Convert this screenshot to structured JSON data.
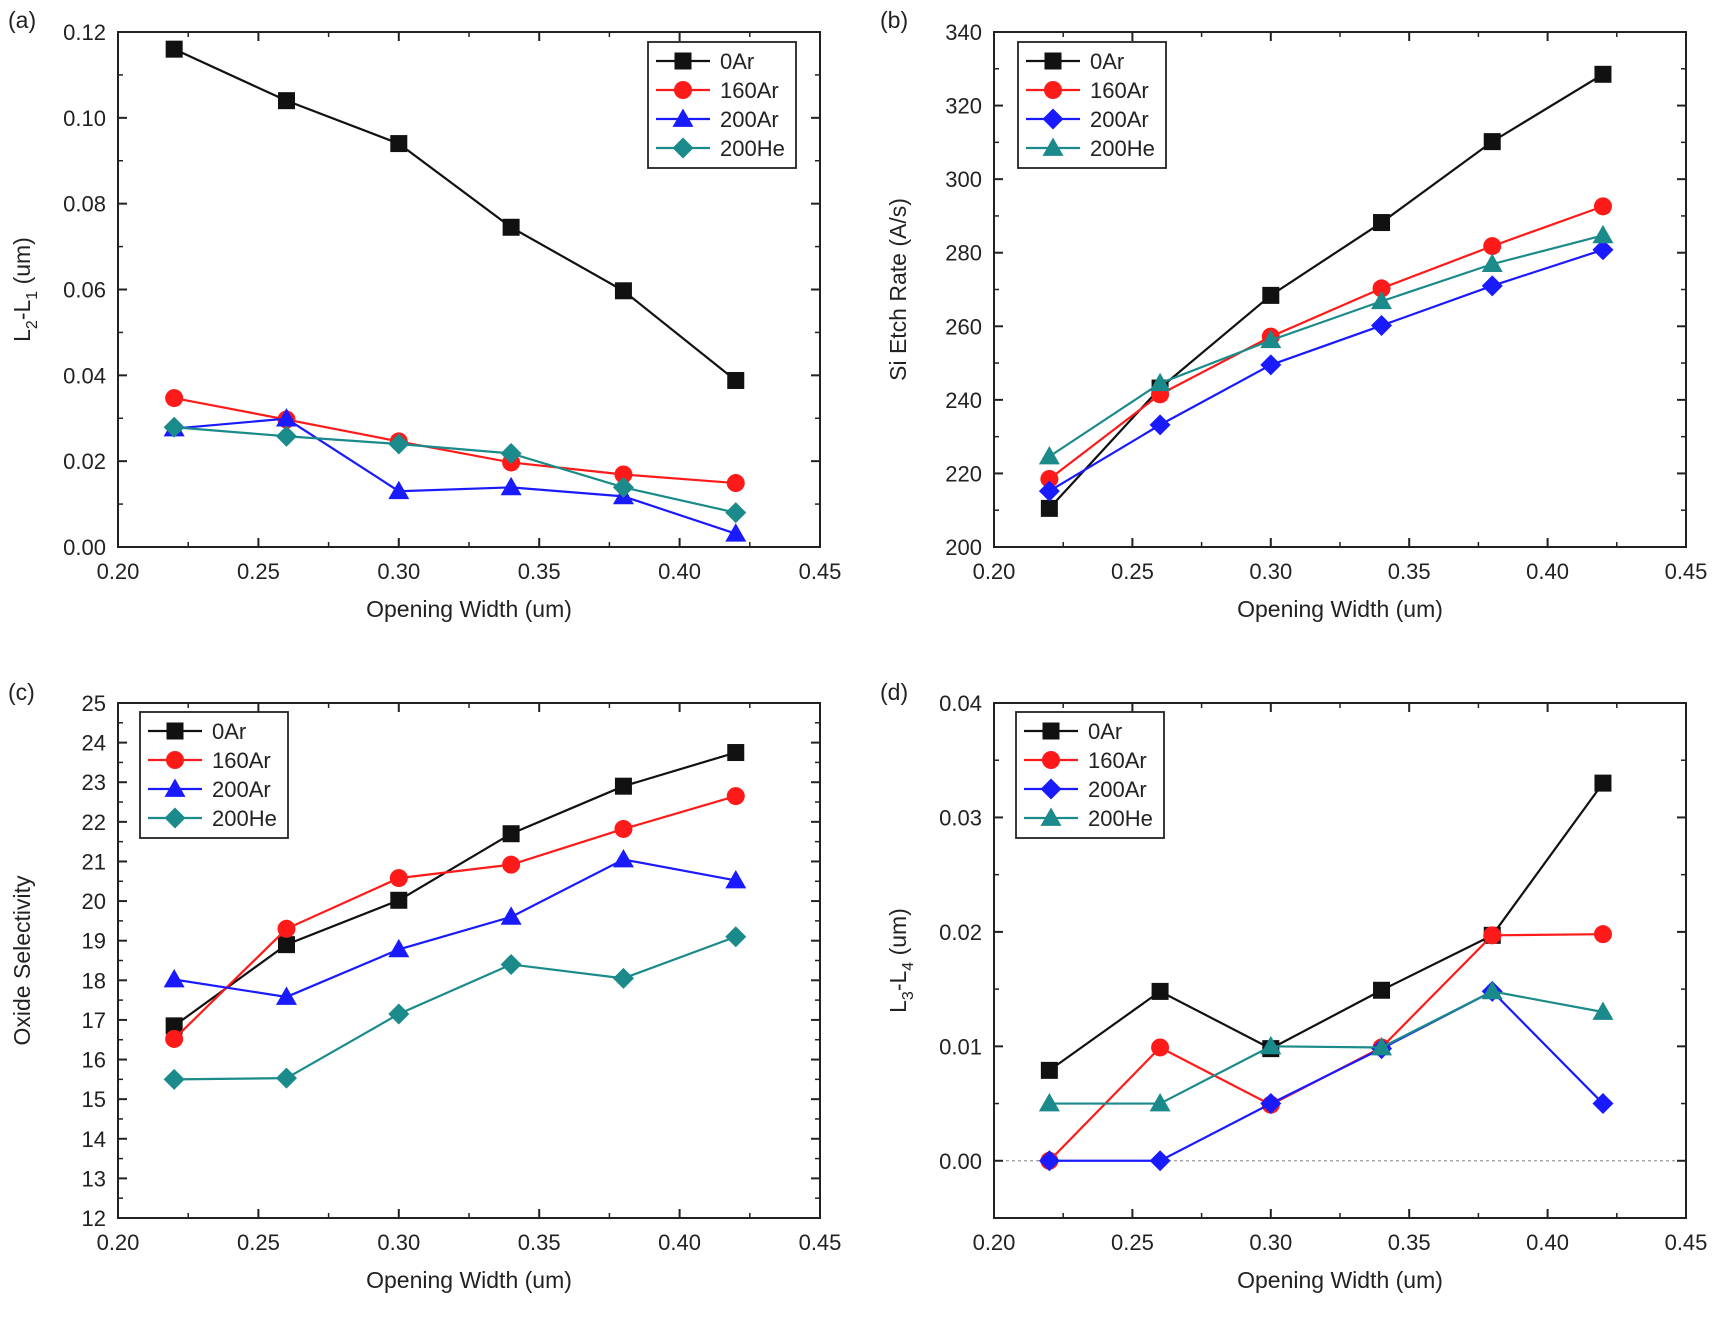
{
  "figure": {
    "colors": {
      "0Ar": "#111111",
      "160Ar": "#ff1a1a",
      "200Ar": "#1a1aff",
      "200He": "#1a8a8a",
      "axis": "#222222",
      "zeroline": "#999999"
    }
  },
  "chart_data": [
    {
      "panel": "(a)",
      "type": "line",
      "xlabel": "Opening Width (um)",
      "ylabel": "L2-L1 (um)",
      "ylabel_parts": {
        "a": "L",
        "a_sub": "2",
        "mid": "-L",
        "b_sub": "1",
        "tail": " (um)"
      },
      "xlim": [
        0.2,
        0.45
      ],
      "ylim": [
        0.0,
        0.12
      ],
      "xticks": [
        "0.20",
        "0.25",
        "0.30",
        "0.35",
        "0.40",
        "0.45"
      ],
      "yticks": [
        "0.00",
        "0.02",
        "0.04",
        "0.06",
        "0.08",
        "0.10",
        "0.12"
      ],
      "x": [
        0.22,
        0.26,
        0.3,
        0.34,
        0.38,
        0.42
      ],
      "series": [
        {
          "name": "0Ar",
          "marker": "square",
          "values": [
            0.116,
            0.104,
            0.094,
            0.0745,
            0.0597,
            0.0388
          ]
        },
        {
          "name": "160Ar",
          "marker": "circle",
          "values": [
            0.0347,
            0.0297,
            0.0246,
            0.0197,
            0.0169,
            0.0149
          ]
        },
        {
          "name": "200Ar",
          "marker": "triangle",
          "values": [
            0.0276,
            0.0299,
            0.013,
            0.0139,
            0.0118,
            0.0031
          ]
        },
        {
          "name": "200He",
          "marker": "diamond",
          "values": [
            0.0279,
            0.0258,
            0.024,
            0.0218,
            0.0139,
            0.008
          ]
        }
      ],
      "legend": "top-right"
    },
    {
      "panel": "(b)",
      "type": "line",
      "xlabel": "Opening Width (um)",
      "ylabel": "Si Etch Rate (A/s)",
      "xlim": [
        0.2,
        0.45
      ],
      "ylim": [
        200,
        340
      ],
      "xticks": [
        "0.20",
        "0.25",
        "0.30",
        "0.35",
        "0.40",
        "0.45"
      ],
      "yticks": [
        "200",
        "220",
        "240",
        "260",
        "280",
        "300",
        "320",
        "340"
      ],
      "x": [
        0.22,
        0.26,
        0.3,
        0.34,
        0.38,
        0.42
      ],
      "series": [
        {
          "name": "0Ar",
          "marker": "square",
          "values": [
            210.5,
            243.2,
            268.4,
            288.2,
            310.2,
            328.5
          ]
        },
        {
          "name": "160Ar",
          "marker": "circle",
          "values": [
            218.5,
            241.5,
            257.2,
            270.3,
            281.8,
            292.6
          ]
        },
        {
          "name": "200Ar",
          "marker": "diamond",
          "values": [
            215.2,
            233.2,
            249.5,
            260.2,
            271.0,
            280.8
          ]
        },
        {
          "name": "200He",
          "marker": "triangle",
          "values": [
            224.6,
            244.5,
            256.2,
            266.8,
            276.9,
            284.7
          ]
        }
      ],
      "legend": "top-left"
    },
    {
      "panel": "(c)",
      "type": "line",
      "xlabel": "Opening Width (um)",
      "ylabel": "Oxide Selectivity",
      "xlim": [
        0.2,
        0.45
      ],
      "ylim": [
        12,
        25
      ],
      "xticks": [
        "0.20",
        "0.25",
        "0.30",
        "0.35",
        "0.40",
        "0.45"
      ],
      "yticks": [
        "12",
        "13",
        "14",
        "15",
        "16",
        "17",
        "18",
        "19",
        "20",
        "21",
        "22",
        "23",
        "24",
        "25"
      ],
      "x": [
        0.22,
        0.26,
        0.3,
        0.34,
        0.38,
        0.42
      ],
      "series": [
        {
          "name": "0Ar",
          "marker": "square",
          "values": [
            16.85,
            18.9,
            20.02,
            21.7,
            22.9,
            23.75
          ]
        },
        {
          "name": "160Ar",
          "marker": "circle",
          "values": [
            16.52,
            19.3,
            20.58,
            20.92,
            21.82,
            22.65
          ]
        },
        {
          "name": "200Ar",
          "marker": "triangle",
          "values": [
            18.02,
            17.58,
            18.78,
            19.6,
            21.05,
            20.52
          ]
        },
        {
          "name": "200He",
          "marker": "diamond",
          "values": [
            15.5,
            15.53,
            17.15,
            18.4,
            18.05,
            19.1
          ]
        }
      ],
      "legend": "top-left"
    },
    {
      "panel": "(d)",
      "type": "line",
      "xlabel": "Opening Width (um)",
      "ylabel": "L3-L4 (um)",
      "ylabel_parts": {
        "a": "L",
        "a_sub": "3",
        "mid": "-L",
        "b_sub": "4",
        "tail": " (um)"
      },
      "xlim": [
        0.2,
        0.45
      ],
      "ylim": [
        -0.005,
        0.04
      ],
      "xticks": [
        "0.20",
        "0.25",
        "0.30",
        "0.35",
        "0.40",
        "0.45"
      ],
      "yticks": [
        "0.00",
        "0.01",
        "0.02",
        "0.03",
        "0.04"
      ],
      "ytick_values": [
        0.0,
        0.01,
        0.02,
        0.03,
        0.04
      ],
      "zero_line": true,
      "x": [
        0.22,
        0.26,
        0.3,
        0.34,
        0.38,
        0.42
      ],
      "series": [
        {
          "name": "0Ar",
          "marker": "square",
          "values": [
            0.0079,
            0.0148,
            0.0098,
            0.0149,
            0.0197,
            0.033
          ]
        },
        {
          "name": "160Ar",
          "marker": "circle",
          "values": [
            0.0,
            0.0099,
            0.0049,
            0.0099,
            0.0197,
            0.0198
          ]
        },
        {
          "name": "200Ar",
          "marker": "diamond",
          "values": [
            0.0,
            0.0,
            0.005,
            0.0098,
            0.0148,
            0.005
          ]
        },
        {
          "name": "200He",
          "marker": "triangle",
          "values": [
            0.005,
            0.005,
            0.01,
            0.0099,
            0.0148,
            0.013
          ]
        }
      ],
      "legend": "top-left"
    }
  ]
}
